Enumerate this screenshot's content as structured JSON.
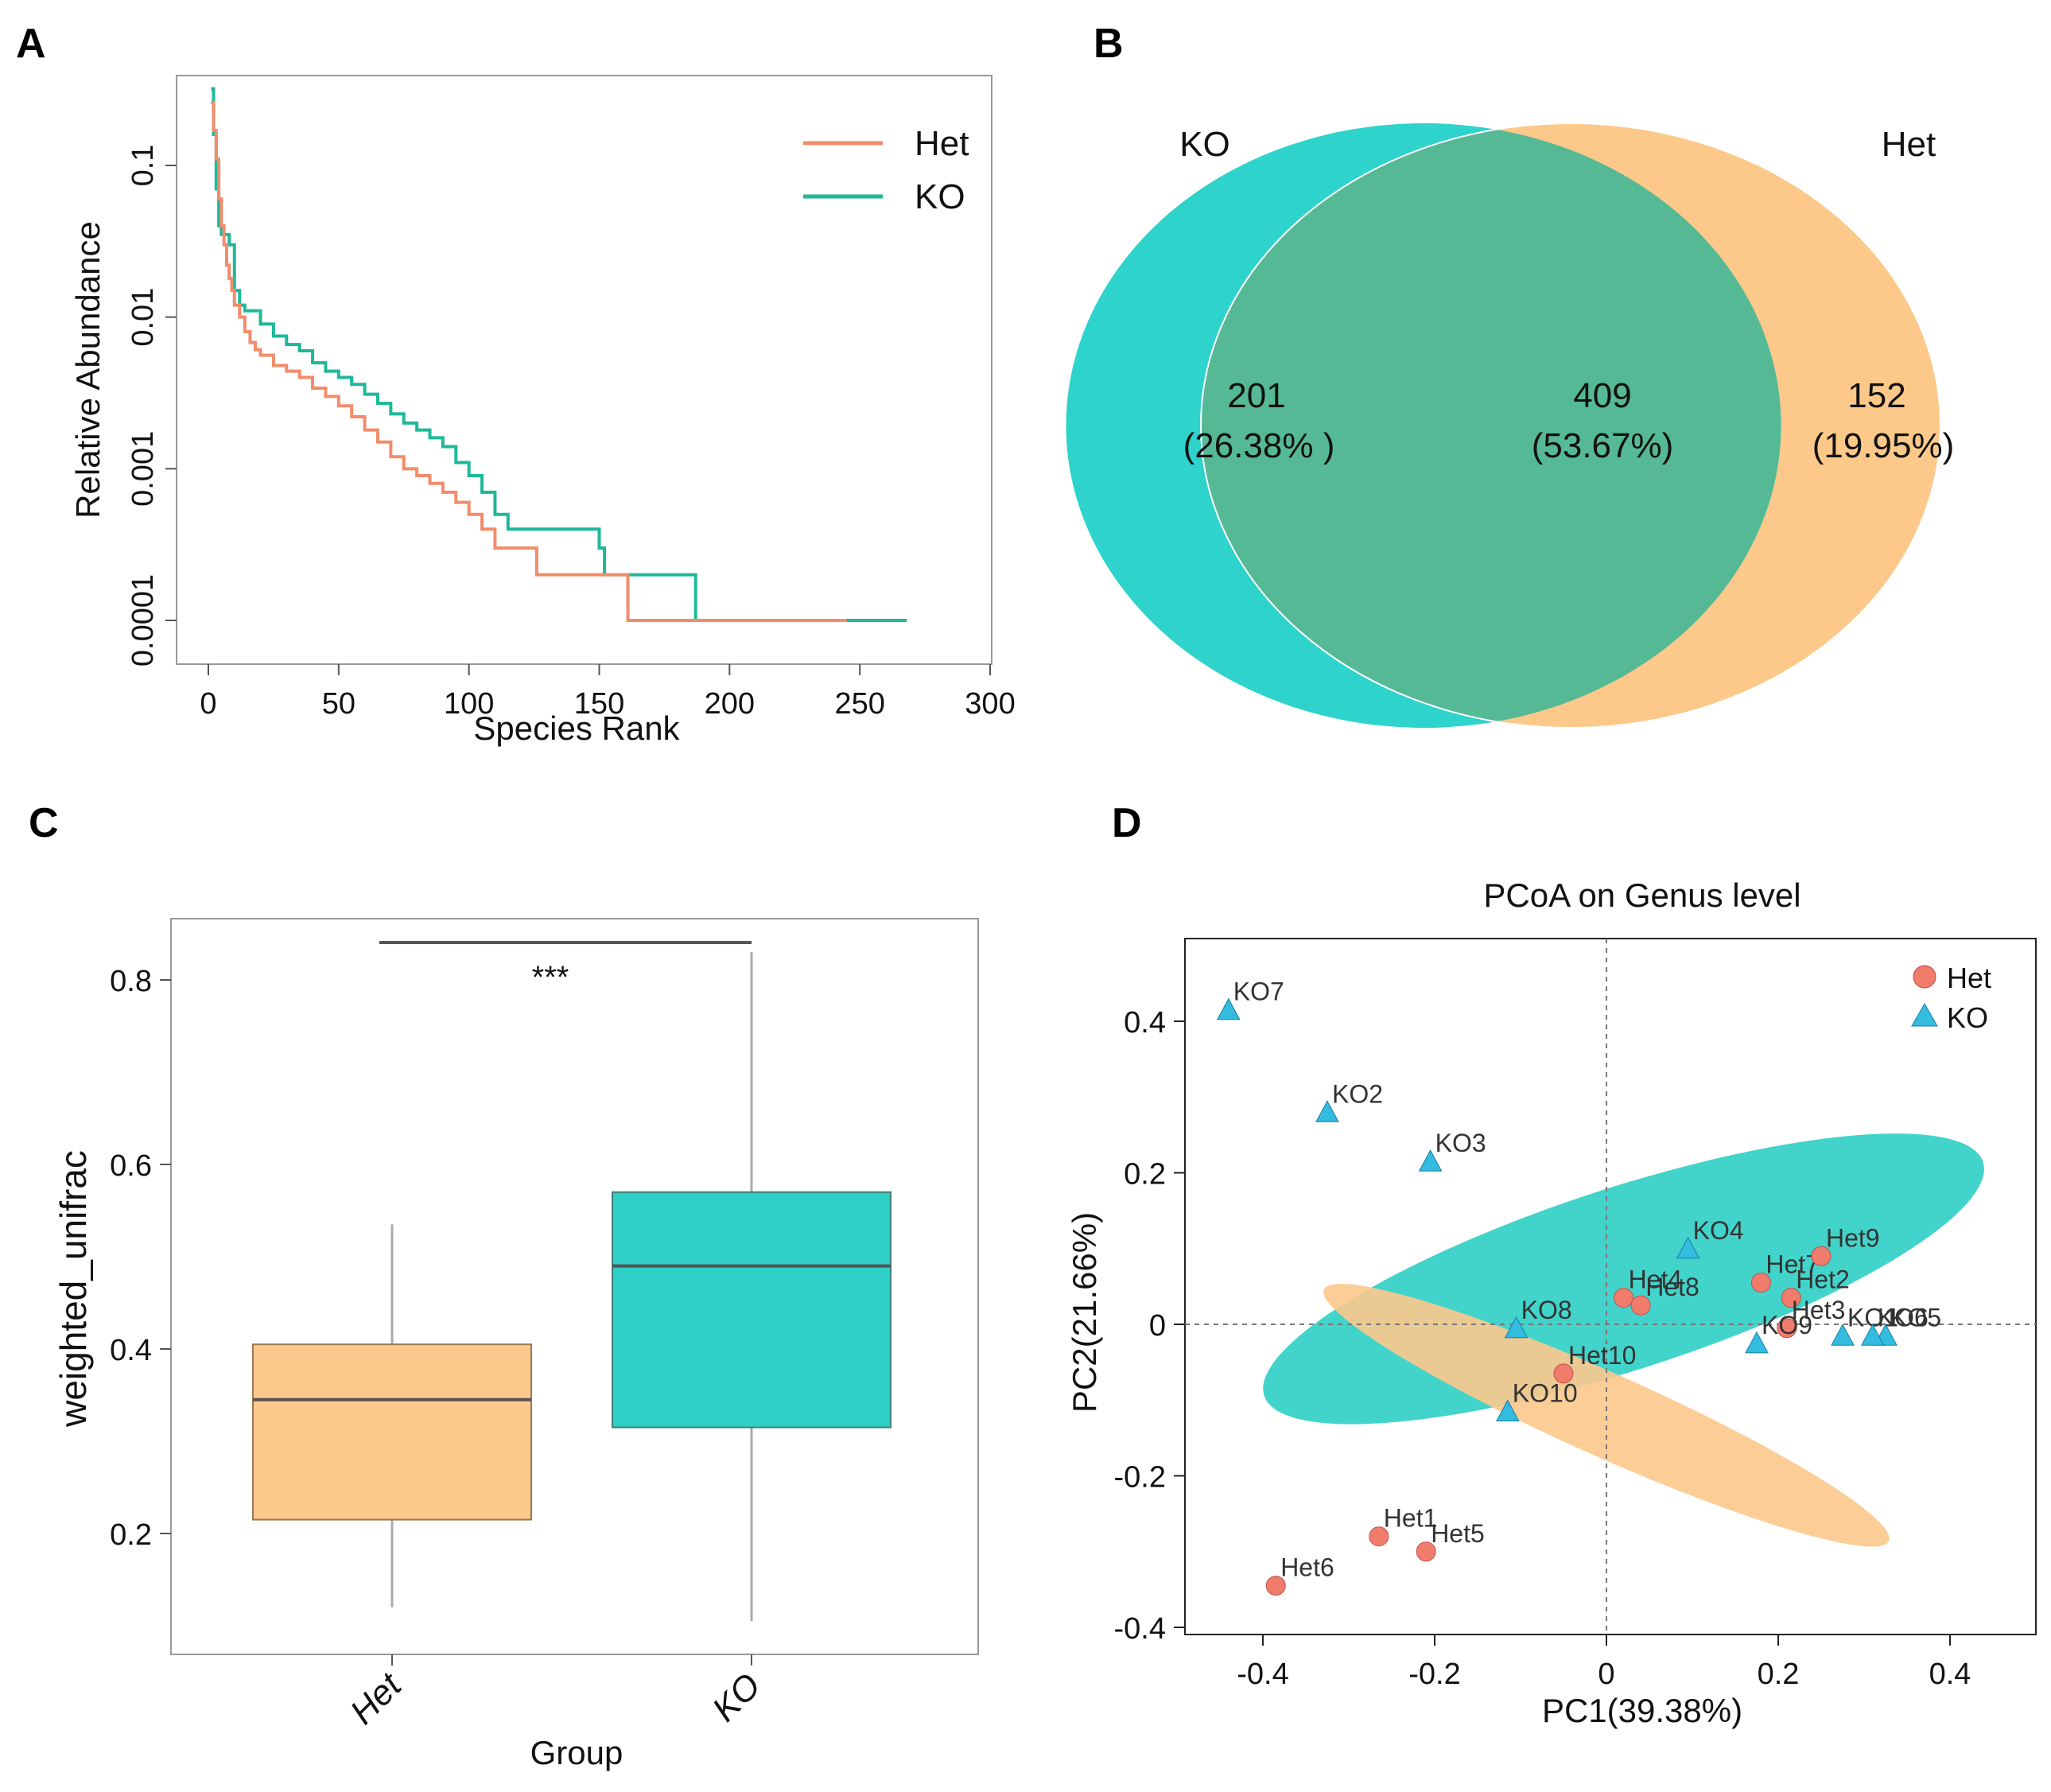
{
  "panels": [
    "A",
    "B",
    "C",
    "D"
  ],
  "colors": {
    "het": "#F28C6A",
    "ko": "#1FB89A",
    "het_fill": "#FDC88C",
    "ko_fill": "#2ECFC4",
    "het_point": "#F07C6C",
    "ko_point": "#33BBE0",
    "venn_ko": "#2ED3CB",
    "venn_het": "#FCC98A",
    "venn_overlap": "#56B995"
  },
  "chart_data": [
    {
      "id": "A",
      "type": "line",
      "xlabel": "Species Rank",
      "ylabel": "Relative Abundance",
      "yscale": "log",
      "xlim": [
        -8,
        300
      ],
      "ylim": [
        8e-05,
        0.4
      ],
      "xticks": [
        0,
        50,
        100,
        150,
        200,
        250,
        300
      ],
      "yticks": [
        0.0001,
        0.001,
        0.01,
        0.1
      ],
      "ytick_labels": [
        "0.0001",
        "0.001",
        "0.01",
        "0.1"
      ],
      "legend": [
        "Het",
        "KO"
      ],
      "series": [
        {
          "name": "Het",
          "points": [
            [
              1,
              0.26
            ],
            [
              2,
              0.17
            ],
            [
              3,
              0.11
            ],
            [
              4,
              0.06
            ],
            [
              5,
              0.04
            ],
            [
              6,
              0.03
            ],
            [
              7,
              0.022
            ],
            [
              8,
              0.018
            ],
            [
              9,
              0.015
            ],
            [
              10,
              0.012
            ],
            [
              12,
              0.01
            ],
            [
              14,
              0.008
            ],
            [
              16,
              0.0068
            ],
            [
              18,
              0.0061
            ],
            [
              20,
              0.0056
            ],
            [
              25,
              0.0048
            ],
            [
              30,
              0.0044
            ],
            [
              35,
              0.004
            ],
            [
              40,
              0.0034
            ],
            [
              45,
              0.003
            ],
            [
              50,
              0.0026
            ],
            [
              55,
              0.0022
            ],
            [
              60,
              0.0018
            ],
            [
              65,
              0.0015
            ],
            [
              70,
              0.0012
            ],
            [
              75,
              0.001
            ],
            [
              80,
              0.0009
            ],
            [
              85,
              0.0008
            ],
            [
              90,
              0.0007
            ],
            [
              95,
              0.0006
            ],
            [
              100,
              0.0005
            ],
            [
              105,
              0.0004
            ],
            [
              110,
              0.0003
            ],
            [
              125,
              0.0003
            ],
            [
              126,
              0.0002
            ],
            [
              160,
              0.0002
            ],
            [
              161,
              0.0001
            ],
            [
              245,
              0.0001
            ]
          ]
        },
        {
          "name": "KO",
          "points": [
            [
              1,
              0.32
            ],
            [
              2,
              0.16
            ],
            [
              3,
              0.07
            ],
            [
              4,
              0.04
            ],
            [
              5,
              0.035
            ],
            [
              8,
              0.03
            ],
            [
              10,
              0.015
            ],
            [
              12,
              0.012
            ],
            [
              14,
              0.011
            ],
            [
              20,
              0.009
            ],
            [
              25,
              0.0075
            ],
            [
              30,
              0.0066
            ],
            [
              35,
              0.006
            ],
            [
              40,
              0.005
            ],
            [
              45,
              0.0044
            ],
            [
              50,
              0.004
            ],
            [
              55,
              0.0036
            ],
            [
              60,
              0.0031
            ],
            [
              65,
              0.0027
            ],
            [
              70,
              0.0023
            ],
            [
              75,
              0.002
            ],
            [
              80,
              0.0018
            ],
            [
              85,
              0.0016
            ],
            [
              90,
              0.0014
            ],
            [
              95,
              0.0011
            ],
            [
              100,
              0.0009
            ],
            [
              105,
              0.0007
            ],
            [
              110,
              0.0005
            ],
            [
              115,
              0.0004
            ],
            [
              150,
              0.0003
            ],
            [
              152,
              0.0002
            ],
            [
              186,
              0.0002
            ],
            [
              187,
              0.0001
            ],
            [
              268,
              0.0001
            ]
          ]
        }
      ]
    },
    {
      "id": "B",
      "type": "venn",
      "sets": [
        {
          "name": "KO",
          "unique": "201",
          "percent": "(26.38% )"
        },
        {
          "name": "Het",
          "unique": "152",
          "percent": "(19.95%)"
        }
      ],
      "overlap": {
        "value": "409",
        "percent": "(53.67%)"
      }
    },
    {
      "id": "C",
      "type": "box",
      "xlabel": "Group",
      "ylabel": "weighted_unifrac",
      "ylim": [
        0.08,
        0.88
      ],
      "yticks": [
        0.2,
        0.4,
        0.6,
        0.8
      ],
      "ytick_labels": [
        "0.2",
        "0.4",
        "0.6",
        "0.8"
      ],
      "significance": "***",
      "groups": [
        {
          "name": "Het",
          "min": 0.12,
          "q1": 0.215,
          "median": 0.345,
          "q3": 0.405,
          "max": 0.535
        },
        {
          "name": "KO",
          "min": 0.105,
          "q1": 0.315,
          "median": 0.49,
          "q3": 0.57,
          "max": 0.83
        }
      ]
    },
    {
      "id": "D",
      "type": "scatter",
      "title": "PCoA on Genus level",
      "xlabel": "PC1(39.38%)",
      "ylabel": "PC2(21.66%)",
      "xlim": [
        -0.5,
        0.5
      ],
      "ylim": [
        -0.39,
        0.5
      ],
      "xticks": [
        -0.4,
        -0.2,
        0,
        0.2,
        0.4
      ],
      "xtick_labels": [
        "-0.4",
        "-0.2",
        "0",
        "0.2",
        "0.4"
      ],
      "yticks": [
        -0.4,
        -0.2,
        0,
        0.2,
        0.4
      ],
      "ytick_labels": [
        "-0.4",
        "-0.2",
        "0",
        "0.2",
        "0.4"
      ],
      "legend": [
        "Het",
        "KO"
      ],
      "ellipses": [
        {
          "group": "KO",
          "center": [
            0.02,
            0.06
          ],
          "semi_major": 0.44,
          "semi_minor": 0.12,
          "angle_deg": -18
        },
        {
          "group": "Het",
          "center": [
            0.0,
            -0.12
          ],
          "semi_major": 0.36,
          "semi_minor": 0.055,
          "angle_deg": 24
        }
      ],
      "series": [
        {
          "name": "Het",
          "marker": "circle",
          "points": [
            {
              "label": "Het1",
              "x": -0.265,
              "y": -0.28
            },
            {
              "label": "Het2",
              "x": 0.215,
              "y": 0.035
            },
            {
              "label": "Het3",
              "x": 0.21,
              "y": -0.005
            },
            {
              "label": "Het4",
              "x": 0.02,
              "y": 0.035
            },
            {
              "label": "Het5",
              "x": -0.21,
              "y": -0.3
            },
            {
              "label": "Het6",
              "x": -0.385,
              "y": -0.345
            },
            {
              "label": "Het7",
              "x": 0.18,
              "y": 0.055
            },
            {
              "label": "Het8",
              "x": 0.04,
              "y": 0.025
            },
            {
              "label": "Het9",
              "x": 0.25,
              "y": 0.09
            },
            {
              "label": "Het10",
              "x": -0.05,
              "y": -0.065
            }
          ]
        },
        {
          "name": "KO",
          "marker": "triangle",
          "points": [
            {
              "label": "KO1",
              "x": 0.275,
              "y": -0.015
            },
            {
              "label": "KO2",
              "x": -0.325,
              "y": 0.28
            },
            {
              "label": "KO3",
              "x": -0.205,
              "y": 0.215
            },
            {
              "label": "KO4",
              "x": 0.095,
              "y": 0.1
            },
            {
              "label": "KO5",
              "x": 0.325,
              "y": -0.015
            },
            {
              "label": "KO6",
              "x": 0.31,
              "y": -0.015
            },
            {
              "label": "KO7",
              "x": -0.44,
              "y": 0.415
            },
            {
              "label": "KO8",
              "x": -0.105,
              "y": -0.005
            },
            {
              "label": "KO9",
              "x": 0.175,
              "y": -0.025
            },
            {
              "label": "KO10",
              "x": -0.115,
              "y": -0.115
            }
          ]
        }
      ]
    }
  ]
}
